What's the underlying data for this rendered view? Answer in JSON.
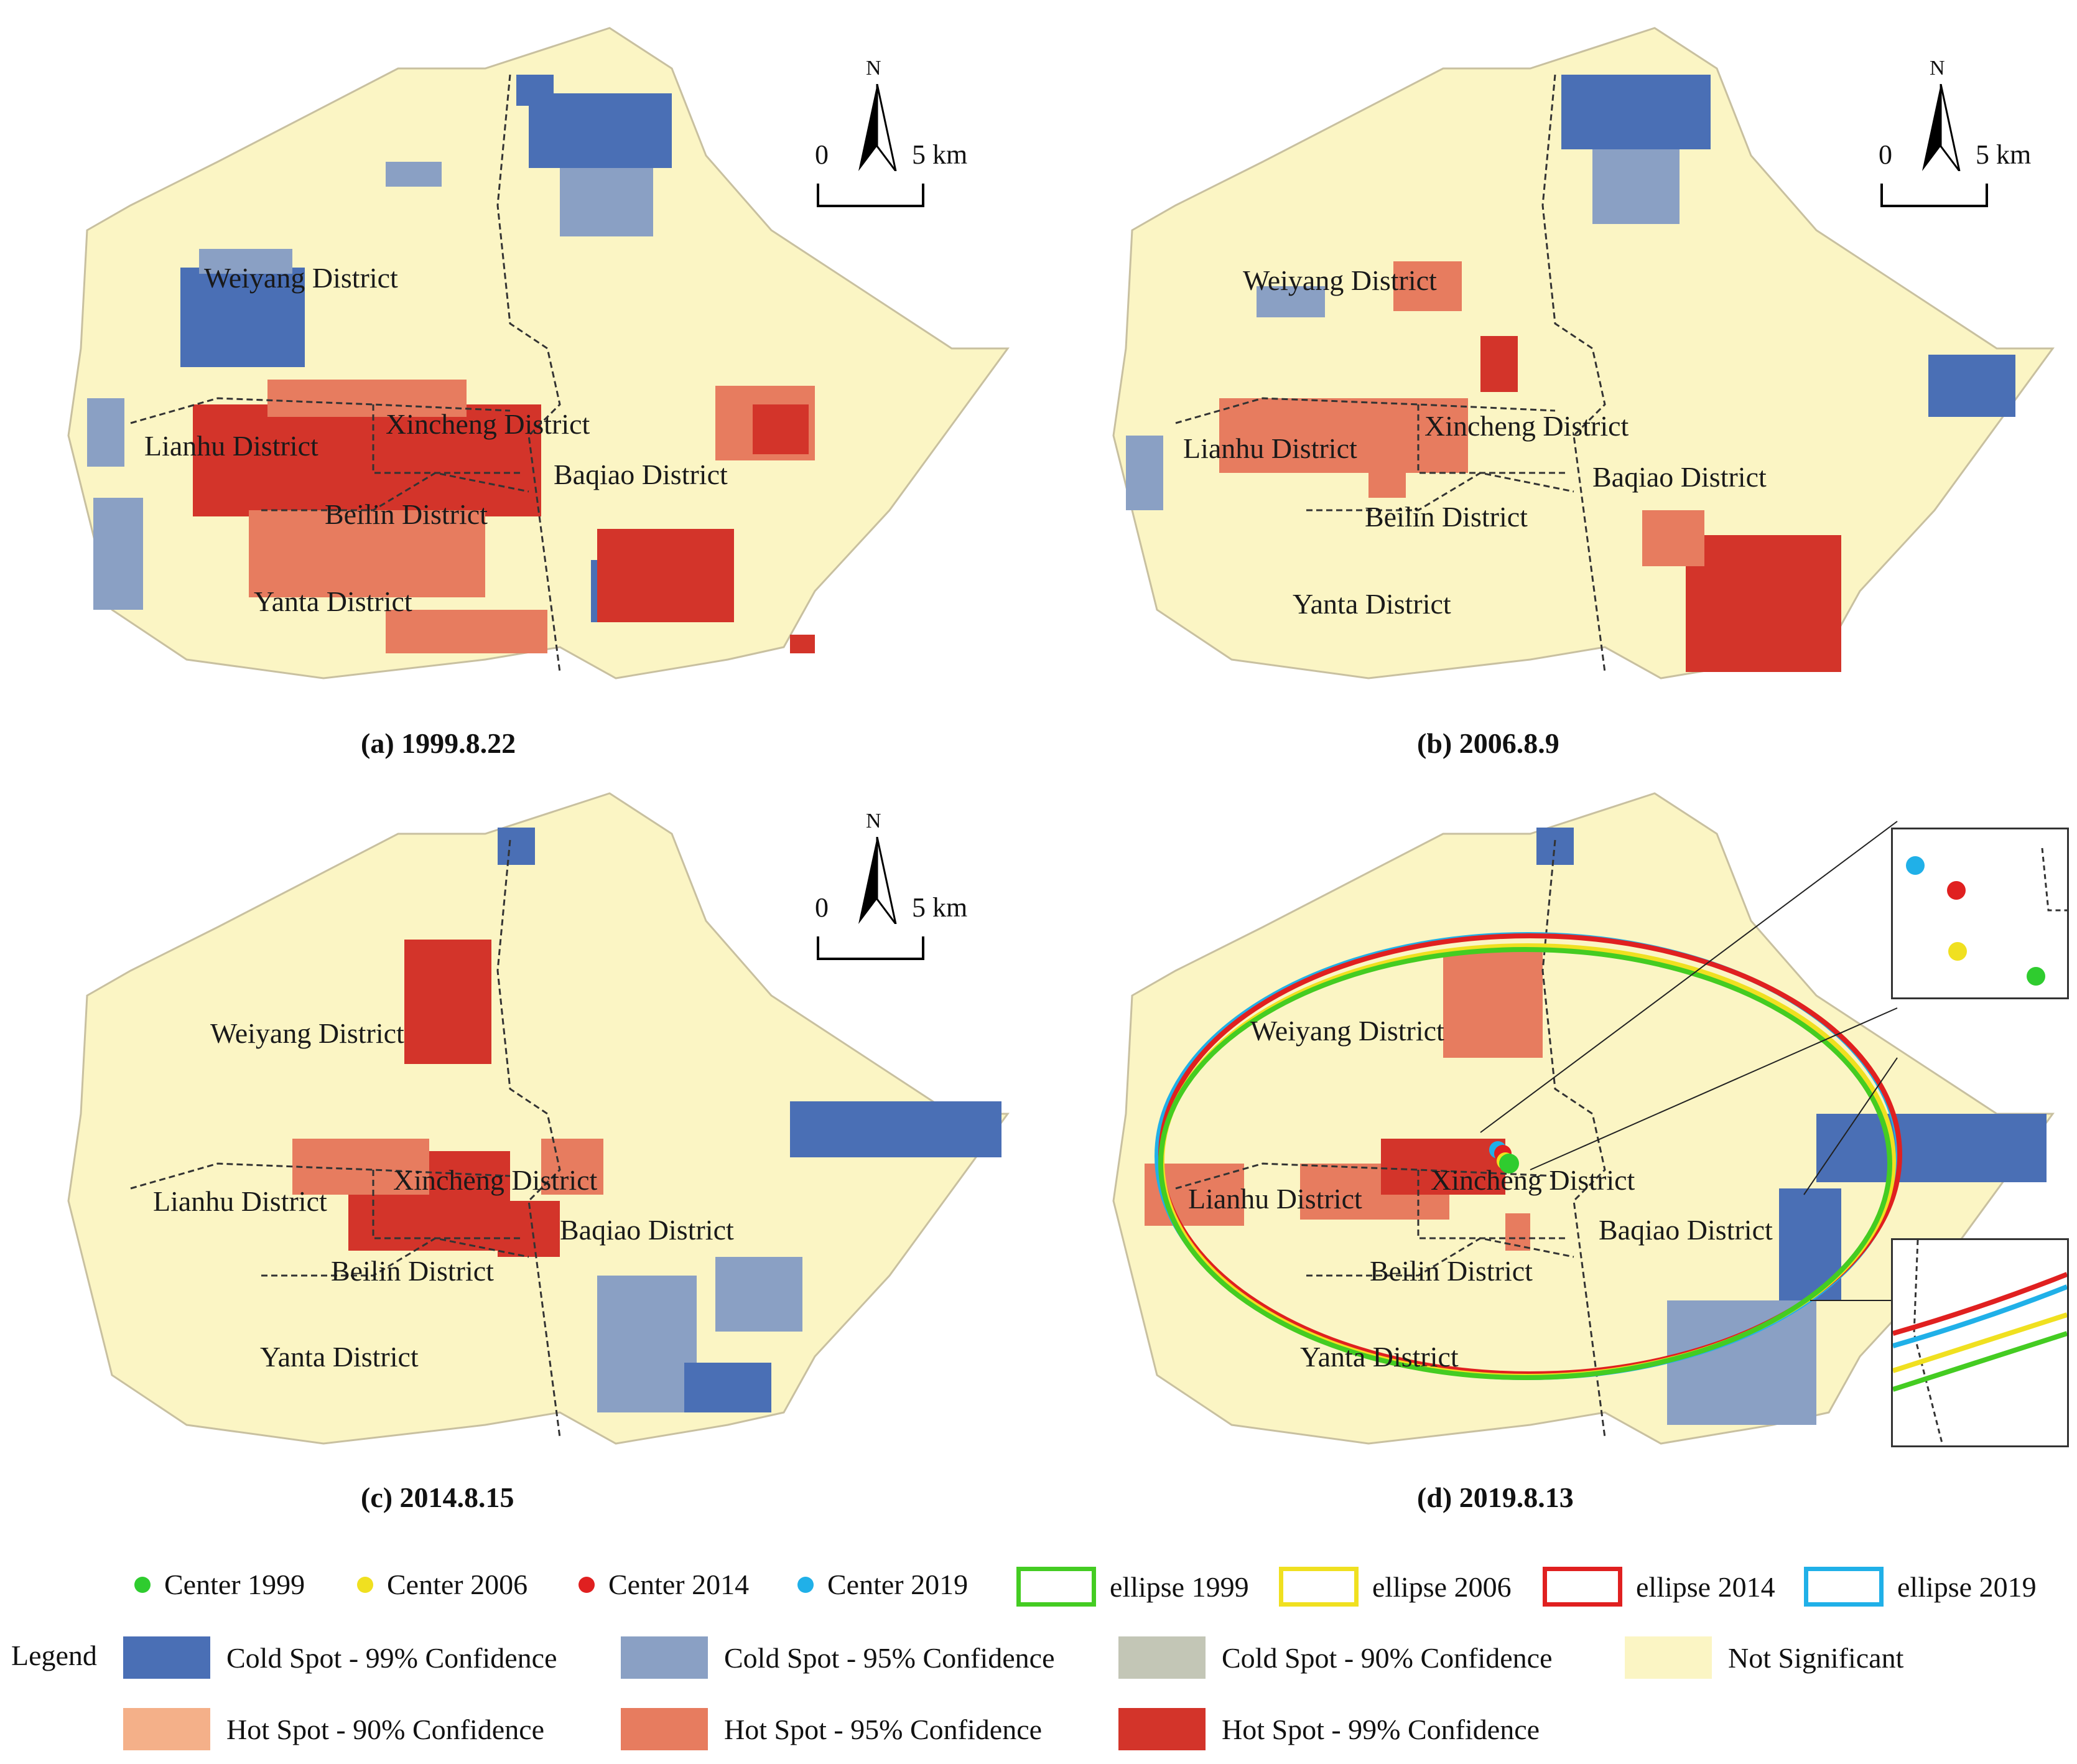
{
  "colors": {
    "cold99": "#4a6fb5",
    "cold95": "#8aa0c4",
    "cold90": "#c3c6b6",
    "notsig": "#fbf5c4",
    "hot90": "#f4b089",
    "hot95": "#e77c5f",
    "hot99": "#d3342a",
    "center1999": "#2fcc2f",
    "center2006": "#f0e020",
    "center2014": "#e02020",
    "center2019": "#20b0e8"
  },
  "districts": {
    "weiyang": "Weiyang District",
    "lianhu": "Lianhu District",
    "xincheng": "Xincheng District",
    "beilin": "Beilin District",
    "baqiao": "Baqiao District",
    "yanta": "Yanta District"
  },
  "panels": [
    {
      "id": "a",
      "caption": "(a) 1999.8.22",
      "has_scale": true
    },
    {
      "id": "b",
      "caption": "(b) 2006.8.9",
      "has_scale": true
    },
    {
      "id": "c",
      "caption": "(c) 2014.8.15",
      "has_scale": true
    },
    {
      "id": "d",
      "caption": "(d) 2019.8.13",
      "has_scale": false
    }
  ],
  "scale": {
    "north": "N",
    "zero": "0",
    "five": "5 km"
  },
  "legend_centers": [
    {
      "label": "Center 1999",
      "color": "#2fcc2f"
    },
    {
      "label": "Center 2006",
      "color": "#f0e020"
    },
    {
      "label": "Center 2014",
      "color": "#e02020"
    },
    {
      "label": "Center 2019",
      "color": "#20b0e8"
    }
  ],
  "legend_ellipses": [
    {
      "label": "ellipse 1999",
      "color": "#44cc22"
    },
    {
      "label": "ellipse 2006",
      "color": "#f0e020"
    },
    {
      "label": "ellipse 2014",
      "color": "#e02020"
    },
    {
      "label": "ellipse 2019",
      "color": "#20b0e8"
    }
  ],
  "legend": {
    "title": "Legend",
    "classes": [
      {
        "label": "Cold Spot - 99% Confidence",
        "color": "#4a6fb5"
      },
      {
        "label": "Cold Spot - 95% Confidence",
        "color": "#8aa0c4"
      },
      {
        "label": "Cold Spot - 90% Confidence",
        "color": "#c3c6b6"
      },
      {
        "label": "Not Significant",
        "color": "#fbf5c4"
      },
      {
        "label": "Hot Spot - 90% Confidence",
        "color": "#f4b089"
      },
      {
        "label": "Hot Spot - 95% Confidence",
        "color": "#e77c5f"
      },
      {
        "label": "Hot Spot - 99% Confidence",
        "color": "#d3342a"
      }
    ]
  }
}
